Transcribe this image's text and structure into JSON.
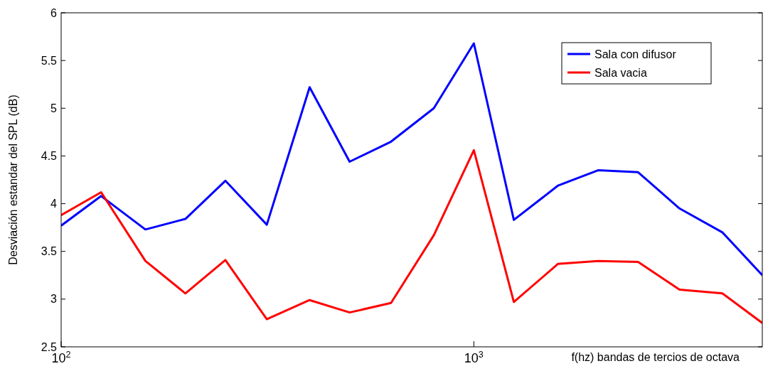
{
  "chart_data": {
    "type": "line",
    "xlabel": "f(hz) bandas de tercios de octava",
    "ylabel": "Desviación estandar del SPL (dB)",
    "x": [
      100,
      125,
      160,
      200,
      250,
      315,
      400,
      500,
      630,
      800,
      1000,
      1250,
      1600,
      2000,
      2500,
      3150,
      4000,
      5000
    ],
    "series": [
      {
        "name": "Sala con difusor",
        "color": "#0000ff",
        "values": [
          3.77,
          4.08,
          3.73,
          3.84,
          4.24,
          3.78,
          5.22,
          4.44,
          4.65,
          5.0,
          5.68,
          3.83,
          4.19,
          4.35,
          4.33,
          3.95,
          3.7,
          3.25
        ]
      },
      {
        "name": "Sala vacia",
        "color": "#ff0000",
        "values": [
          3.88,
          4.12,
          3.4,
          3.06,
          3.41,
          2.79,
          2.99,
          2.86,
          2.96,
          3.67,
          4.56,
          2.97,
          3.37,
          3.4,
          3.39,
          3.1,
          3.06,
          2.75
        ]
      }
    ],
    "log": "x",
    "xlim": [
      100,
      5000
    ],
    "xticks": [
      {
        "value": 100,
        "label": "10$^{2}$"
      },
      {
        "value": 1000,
        "label": "10$^{3}$"
      }
    ],
    "ylim": [
      2.5,
      6
    ],
    "yticks": [
      2.5,
      3,
      3.5,
      4,
      4.5,
      5,
      5.5,
      6
    ],
    "legend": "top right",
    "grid": false,
    "line_style": "solid"
  }
}
